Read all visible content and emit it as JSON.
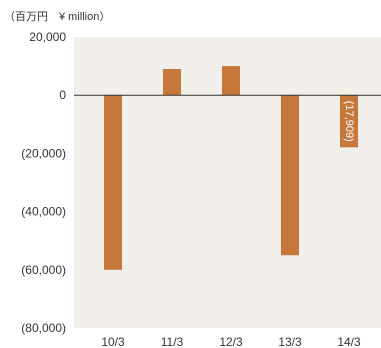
{
  "chart_data": {
    "type": "bar",
    "unit_label": "（百万円　¥ million）",
    "categories": [
      "10/3",
      "11/3",
      "12/3",
      "13/3",
      "14/3"
    ],
    "values": [
      -60000,
      9000,
      10000,
      -55000,
      -17909
    ],
    "data_labels": [
      "",
      "",
      "",
      "",
      "(17,909)"
    ],
    "y_ticks": [
      20000,
      0,
      -20000,
      -40000,
      -60000,
      -80000
    ],
    "y_tick_labels": [
      "20,000",
      "0",
      "(20,000)",
      "(40,000)",
      "(60,000)",
      "(80,000)"
    ],
    "ylim": [
      -80000,
      20000
    ],
    "grid": false,
    "colors": {
      "bar": "#c8773b",
      "plot_background": "#f2efea",
      "zero_line": "#333333"
    }
  }
}
